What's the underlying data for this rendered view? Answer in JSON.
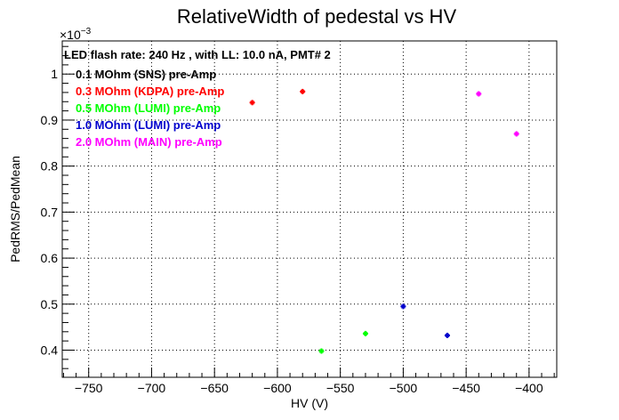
{
  "chart_data": {
    "type": "scatter",
    "title": "RelativeWidth of pedestal vs HV",
    "xlabel": "HV (V)",
    "ylabel": "PedRMS/PedMean",
    "y_multiplier": {
      "base": "×10",
      "exponent": "−3"
    },
    "xlim": [
      -771,
      -378
    ],
    "ylim": [
      0.341,
      1.072
    ],
    "grid": true,
    "x_ticks": [
      {
        "v": -750,
        "label": "−750"
      },
      {
        "v": -700,
        "label": "−700"
      },
      {
        "v": -650,
        "label": "−650"
      },
      {
        "v": -600,
        "label": "−600"
      },
      {
        "v": -550,
        "label": "−550"
      },
      {
        "v": -500,
        "label": "−500"
      },
      {
        "v": -450,
        "label": "−450"
      },
      {
        "v": -400,
        "label": "−400"
      }
    ],
    "y_ticks": [
      {
        "v": 0.4,
        "label": "0.4"
      },
      {
        "v": 0.5,
        "label": "0.5"
      },
      {
        "v": 0.6,
        "label": "0.6"
      },
      {
        "v": 0.7,
        "label": "0.7"
      },
      {
        "v": 0.8,
        "label": "0.8"
      },
      {
        "v": 0.9,
        "label": "0.9"
      },
      {
        "v": 1.0,
        "label": "1"
      }
    ],
    "annotations": [
      {
        "text": "LED flash rate: 240 Hz , with LL: 10.0 nA, PMT# 2",
        "color": "#000000"
      }
    ],
    "legend_position": "top-left",
    "series": [
      {
        "name": "0.1 MOhm (SNS) pre-Amp",
        "color": "#000000",
        "points": []
      },
      {
        "name": "0.3 MOhm (KDPA) pre-Amp",
        "color": "#ff0000",
        "points": [
          [
            -620,
            0.938
          ],
          [
            -580,
            0.962
          ]
        ]
      },
      {
        "name": "0.5 MOhm (LUMI) pre-Amp",
        "color": "#00ff00",
        "points": [
          [
            -565,
            0.398
          ],
          [
            -530,
            0.436
          ]
        ]
      },
      {
        "name": "1.0 MOhm (LUMI) pre-Amp",
        "color": "#0000cc",
        "points": [
          [
            -500,
            0.495
          ],
          [
            -465,
            0.432
          ]
        ]
      },
      {
        "name": "2.0 MOhm (MAIN) pre-Amp",
        "color": "#ff00ff",
        "points": [
          [
            -440,
            0.957
          ],
          [
            -410,
            0.87
          ]
        ]
      }
    ]
  }
}
